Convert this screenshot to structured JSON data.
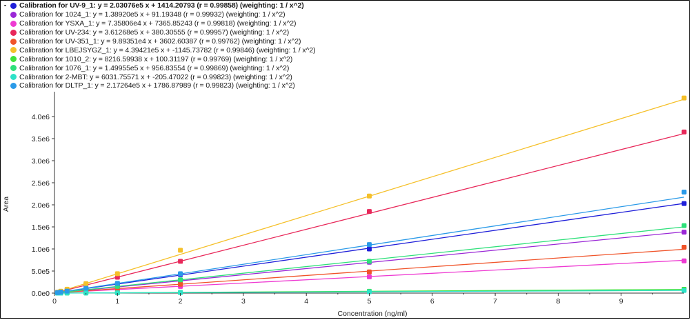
{
  "legend": [
    {
      "label": "Calibration for UV-9_1: y = 2.03076e5 x + 1414.20793 (r = 0.99858)  (weighting: 1 / x^2)",
      "color": "#1f1fd9",
      "bold": true,
      "collapse": "-"
    },
    {
      "label": "Calibration for 1024_1: y = 1.38920e5 x + 91.19348 (r = 0.99932)  (weighting: 1 / x^2)",
      "color": "#9a27d6"
    },
    {
      "label": "Calibration for YSXA_1: y = 7.35806e4 x + 7365.85243 (r = 0.99818)  (weighting: 1 / x^2)",
      "color": "#ee3ad2"
    },
    {
      "label": "Calibration for UV-234: y = 3.61268e5 x + 380.30555 (r = 0.99957)  (weighting: 1 / x^2)",
      "color": "#e8285a"
    },
    {
      "label": "Calibration for UV-351_1: y = 9.89351e4 x + 3602.60387 (r = 0.99762)  (weighting: 1 / x^2)",
      "color": "#f0542a"
    },
    {
      "label": "Calibration for LBEJSYGZ_1: y = 4.39421e5 x + -1145.73782 (r = 0.99846)  (weighting: 1 / x^2)",
      "color": "#f5c02a"
    },
    {
      "label": "Calibration for 1010_2: y = 8216.59938 x + 100.31197 (r = 0.99769)  (weighting: 1 / x^2)",
      "color": "#3ee23a"
    },
    {
      "label": "Calibration for 1076_1: y = 1.49955e5 x + 956.83554 (r = 0.99869)  (weighting: 1 / x^2)",
      "color": "#2ee07a"
    },
    {
      "label": "Calibration for 2-MBT: y = 6031.75571 x + -205.47022 (r = 0.99823)  (weighting: 1 / x^2)",
      "color": "#2ee2c8"
    },
    {
      "label": "Calibration for DLTP_1: y = 2.17264e5 x + 1786.87989 (r = 0.99823)  (weighting: 1 / x^2)",
      "color": "#2a9ae8"
    }
  ],
  "chart_data": {
    "type": "scatter",
    "xlabel": "Concentration (ng/ml)",
    "ylabel": "Area",
    "xlim": [
      0,
      10
    ],
    "ylim": [
      0,
      4500000
    ],
    "x_ticks": [
      "0",
      "1",
      "2",
      "3",
      "4",
      "5",
      "6",
      "7",
      "8",
      "9"
    ],
    "y_ticks": [
      "0.0e0",
      "5.0e5",
      "1.0e6",
      "1.5e6",
      "2.0e6",
      "2.5e6",
      "3.0e6",
      "3.5e6",
      "4.0e6"
    ],
    "x": [
      0.05,
      0.1,
      0.2,
      0.5,
      1,
      2,
      5,
      10
    ],
    "series": [
      {
        "name": "Calibration for UV-9_1",
        "slope": 203076,
        "intercept": 1414.20793,
        "color": "#1f1fd9",
        "values": [
          11000,
          21000,
          42000,
          102000,
          205000,
          420000,
          1000000,
          2030000
        ]
      },
      {
        "name": "Calibration for 1024_1",
        "slope": 138920,
        "intercept": 91.19348,
        "color": "#9a27d6",
        "values": [
          7000,
          14000,
          28000,
          70000,
          140000,
          280000,
          700000,
          1380000
        ]
      },
      {
        "name": "Calibration for YSXA_1",
        "slope": 73580.6,
        "intercept": 7365.85243,
        "color": "#ee3ad2",
        "values": [
          11000,
          15000,
          22000,
          43000,
          80000,
          150000,
          370000,
          730000
        ]
      },
      {
        "name": "Calibration for UV-234",
        "slope": 361268,
        "intercept": 380.30555,
        "color": "#e8285a",
        "values": [
          18000,
          36000,
          72000,
          180000,
          360000,
          720000,
          1850000,
          3650000
        ]
      },
      {
        "name": "Calibration for UV-351_1",
        "slope": 98935.1,
        "intercept": 3602.60387,
        "color": "#f0542a",
        "values": [
          9000,
          13000,
          24000,
          52000,
          103000,
          200000,
          480000,
          1040000
        ]
      },
      {
        "name": "Calibration for LBEJSYGZ_1",
        "slope": 439421,
        "intercept": -1145.73782,
        "color": "#f5c02a",
        "values": [
          21000,
          43000,
          87000,
          215000,
          440000,
          970000,
          2200000,
          4420000
        ]
      },
      {
        "name": "Calibration for 1010_2",
        "slope": 8216.59938,
        "intercept": 100.31197,
        "color": "#3ee23a",
        "values": [
          500,
          900,
          1700,
          4200,
          8300,
          16500,
          41000,
          85000
        ]
      },
      {
        "name": "Calibration for 1076_1",
        "slope": 149955,
        "intercept": 956.83554,
        "color": "#2ee07a",
        "values": [
          8000,
          16000,
          31000,
          76000,
          152000,
          300000,
          720000,
          1530000
        ]
      },
      {
        "name": "Calibration for 2-MBT",
        "slope": 6031.75571,
        "intercept": -205.47022,
        "color": "#2ee2c8",
        "values": [
          100,
          400,
          1000,
          2800,
          5800,
          11800,
          30000,
          60000
        ]
      },
      {
        "name": "Calibration for DLTP_1",
        "slope": 217264,
        "intercept": 1786.87989,
        "color": "#2a9ae8",
        "values": [
          12000,
          23000,
          45000,
          110000,
          220000,
          440000,
          1100000,
          2290000
        ]
      }
    ]
  }
}
